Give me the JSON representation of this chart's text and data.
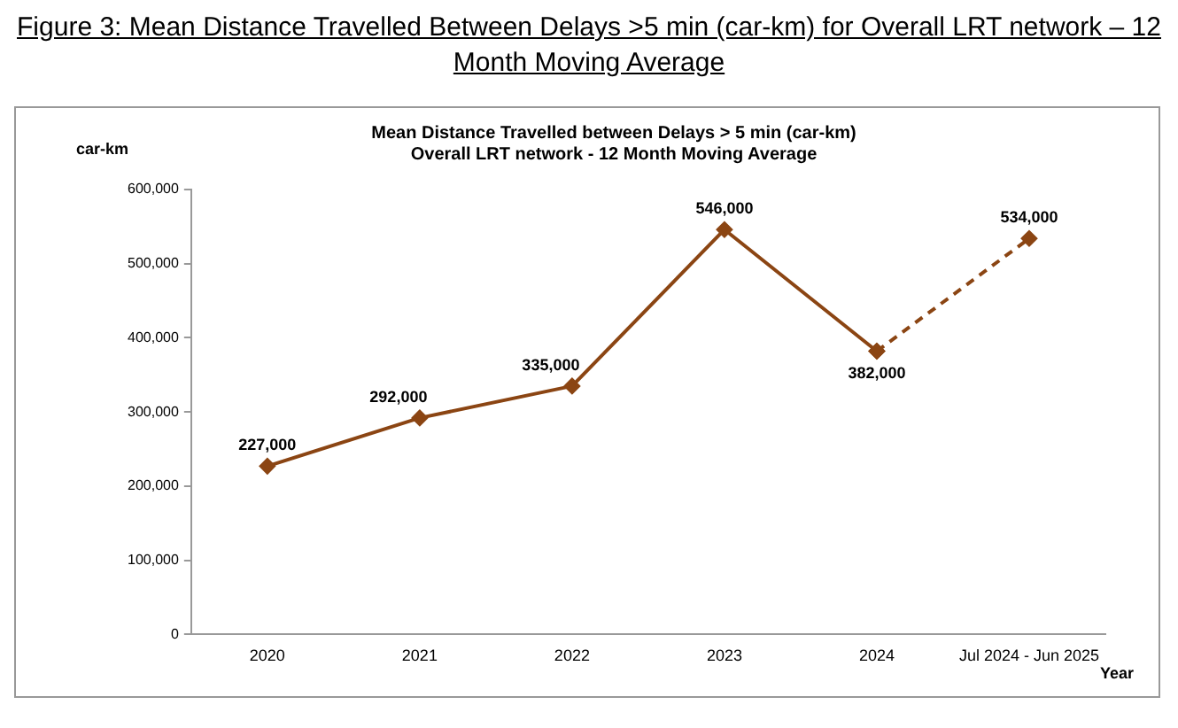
{
  "chart_data": {
    "type": "line",
    "title": "Figure 3: Mean Distance Travelled Between Delays >5 min (car-km) for Overall LRT network – 12 Month Moving Average",
    "subtitle": "Mean Distance Travelled between Delays > 5 min (car-km)\nOverall LRT network - 12 Month Moving Average",
    "ylabel": "car-km",
    "xlabel": "Year",
    "categories": [
      "2020",
      "2021",
      "2022",
      "2023",
      "2024",
      "Jul 2024 - Jun 2025"
    ],
    "series": [
      {
        "color": "#8b4513",
        "line_style": "solid",
        "values": [
          227000,
          292000,
          335000,
          546000,
          382000,
          null
        ],
        "value_labels": [
          "227,000",
          "292,000",
          "335,000",
          "546,000",
          "382,000",
          null
        ]
      },
      {
        "color": "#8b4513",
        "line_style": "dashed",
        "values": [
          null,
          null,
          null,
          null,
          382000,
          534000
        ],
        "value_labels": [
          null,
          null,
          null,
          null,
          null,
          "534,000"
        ]
      }
    ],
    "ylim": [
      0,
      600000
    ],
    "yticks": [
      0,
      {
        "value": 100000,
        "label": "100,000"
      },
      {
        "value": 200000,
        "label": "200,000"
      },
      {
        "value": 300000,
        "label": "300,000"
      },
      {
        "value": 400000,
        "label": "400,000"
      },
      {
        "value": 500000,
        "label": "500,000"
      },
      {
        "value": 600000,
        "label": "600,000"
      }
    ],
    "grid": false,
    "legend": false,
    "marker": "diamond"
  }
}
